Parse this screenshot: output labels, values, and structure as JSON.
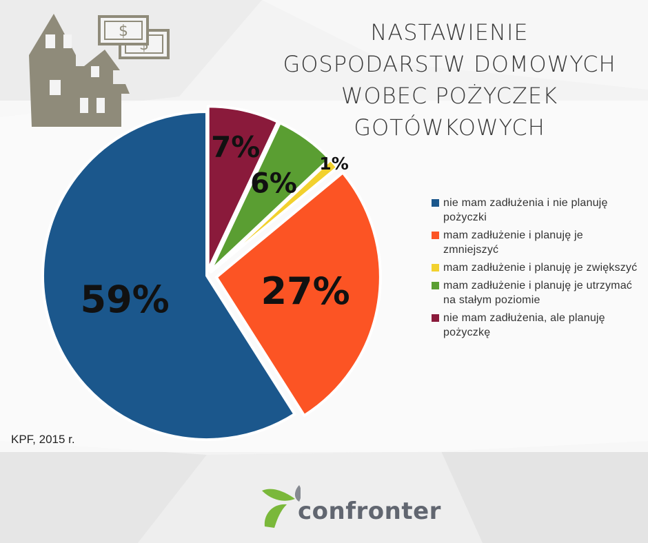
{
  "title_lines": [
    "NASTAWIENIE",
    "GOSPODARSTW DOMOWYCH",
    "WOBEC POŻYCZEK",
    "GOTÓWKOWYCH"
  ],
  "source": "KPF, 2015 r.",
  "brand": "confronter",
  "colors": {
    "house": "#8f8b7a",
    "money": "#8f8b7a",
    "logo_green": "#7ab83a",
    "logo_grey": "#6b7079"
  },
  "icons": [
    "house-icon",
    "money-icon",
    "confronter-logo-icon"
  ],
  "chart_data": {
    "type": "pie",
    "slices": [
      {
        "label": "nie mam zadłużenia, ale planuję pożyczkę",
        "value": 7,
        "label_text": "7%",
        "color": "#8a1a3b"
      },
      {
        "label": "mam zadłużenie i planuję je utrzymać na stałym poziomie",
        "value": 6,
        "label_text": "6%",
        "color": "#5a9e32"
      },
      {
        "label": "mam zadłużenie i planuję je zwiększyć",
        "value": 1,
        "label_text": "1%",
        "color": "#f2d12e"
      },
      {
        "label": "mam zadłużenie i planuję je zmniejszyć",
        "value": 27,
        "label_text": "27%",
        "color": "#fc5424"
      },
      {
        "label": "nie mam zadłużenia i nie planuję pożyczki",
        "value": 59,
        "label_text": "59%",
        "color": "#1b578c"
      }
    ],
    "legend": [
      {
        "label": "nie mam zadłużenia i nie planuję pożyczki",
        "color": "#1b578c"
      },
      {
        "label": "mam zadłużenie i planuję je zmniejszyć",
        "color": "#fc5424"
      },
      {
        "label": "mam zadłużenie i planuję je zwiększyć",
        "color": "#f2d12e"
      },
      {
        "label": "mam zadłużenie i planuję je utrzymać na stałym poziomie",
        "color": "#5a9e32"
      },
      {
        "label": "nie mam zadłużenia, ale planuję pożyczkę",
        "color": "#8a1a3b"
      }
    ],
    "legend_position": "right"
  }
}
